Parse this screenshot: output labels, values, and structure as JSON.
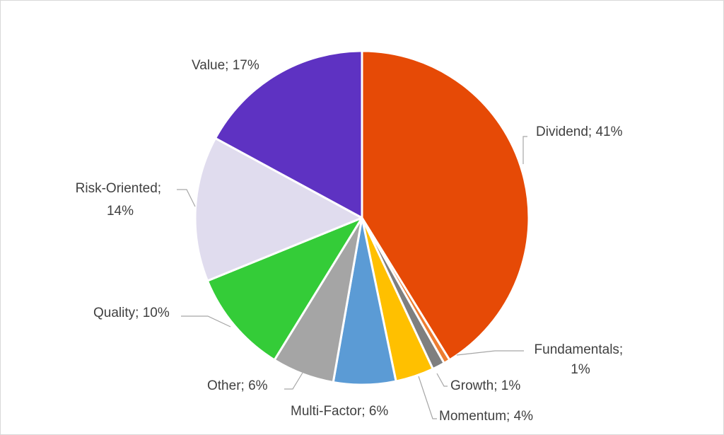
{
  "chart_data": {
    "type": "pie",
    "title": "",
    "slices": [
      {
        "label": "Dividend",
        "value": 41,
        "display": "Dividend; 41%",
        "color": "#E64A06"
      },
      {
        "label": "Fundamentals",
        "value": 0.6,
        "display_line1": "Fundamentals;",
        "display_line2": "1%",
        "color": "#ED7D31"
      },
      {
        "label": "Growth",
        "value": 1.2,
        "display": "Growth; 1%",
        "color": "#7F7F7F"
      },
      {
        "label": "Momentum",
        "value": 3.7,
        "display": "Momentum; 4%",
        "color": "#FFC000"
      },
      {
        "label": "Multi-Factor",
        "value": 6,
        "display": "Multi-Factor; 6%",
        "color": "#5B9BD5"
      },
      {
        "label": "Other",
        "value": 6,
        "display": "Other; 6%",
        "color": "#A5A5A5"
      },
      {
        "label": "Quality",
        "value": 10,
        "display": "Quality; 10%",
        "color": "#34CC38"
      },
      {
        "label": "Risk-Oriented",
        "value": 14,
        "display_line1": "Risk-Oriented;",
        "display_line2": "14%",
        "color": "#E0DCEE"
      },
      {
        "label": "Value",
        "value": 17,
        "display": "Value; 17%",
        "color": "#5E32C2"
      }
    ],
    "legend": "none",
    "label_format": "category; percentage"
  }
}
